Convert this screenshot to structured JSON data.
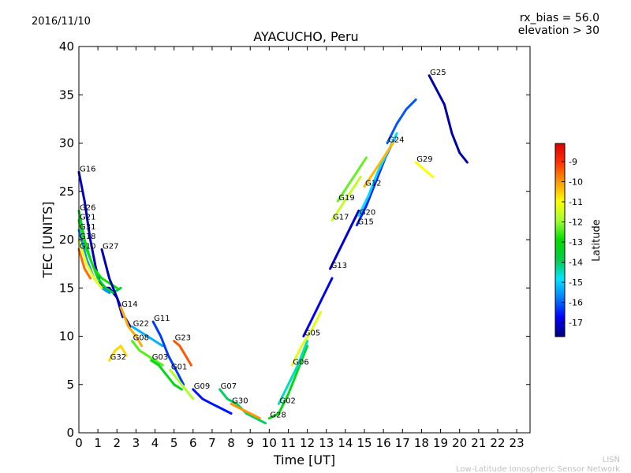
{
  "header": {
    "date": "2016/11/10",
    "title": "AYACUCHO, Peru",
    "bias_line": "rx_bias = 56.0",
    "elevation_line": "elevation > 30"
  },
  "footer": {
    "org_short": "LISN",
    "org_long": "Low-Latitude Ionospheric Sensor Network"
  },
  "colors": {
    "axes": "#000000",
    "footer": "#c0c0c0"
  },
  "chart_data": {
    "type": "scatter",
    "title": "AYACUCHO, Peru",
    "xlabel": "Time [UT]",
    "ylabel": "TEC [UNITS]",
    "xlim": [
      0,
      23.7
    ],
    "ylim": [
      0,
      40
    ],
    "xticks": [
      "0",
      "1",
      "2",
      "3",
      "4",
      "5",
      "6",
      "7",
      "8",
      "9",
      "10",
      "11",
      "12",
      "13",
      "14",
      "15",
      "16",
      "17",
      "18",
      "19",
      "20",
      "21",
      "22",
      "23"
    ],
    "yticks": [
      "0",
      "5",
      "10",
      "15",
      "20",
      "25",
      "30",
      "35",
      "40"
    ],
    "grid": false,
    "colorbar": {
      "label": "Latitude",
      "range": [
        -17.7,
        -8.1
      ],
      "ticks": [
        "-9",
        "-10",
        "-11",
        "-12",
        "-13",
        "-14",
        "-15",
        "-16",
        "-17"
      ],
      "colormap": [
        "#00007f",
        "#0000ff",
        "#007fff",
        "#00e5ff",
        "#00cc44",
        "#00dd00",
        "#a0ff30",
        "#ffff00",
        "#ff9900",
        "#ff3300",
        "#dd0000"
      ]
    },
    "series": [
      {
        "name": "G16",
        "lat": -17.2,
        "points": [
          [
            0,
            27
          ],
          [
            0.3,
            24
          ],
          [
            0.6,
            20
          ],
          [
            0.9,
            17
          ],
          [
            1.2,
            15
          ],
          [
            1.6,
            15
          ],
          [
            2.0,
            14
          ],
          [
            2.3,
            12
          ]
        ]
      },
      {
        "name": "G26",
        "lat": -13.5,
        "points": [
          [
            0,
            23
          ],
          [
            0.3,
            20
          ],
          [
            0.6,
            18
          ],
          [
            1.0,
            16
          ],
          [
            1.4,
            15
          ],
          [
            1.8,
            14.5
          ],
          [
            2.2,
            15
          ]
        ]
      },
      {
        "name": "G21",
        "lat": -12.8,
        "points": [
          [
            0,
            22
          ],
          [
            0.4,
            19
          ],
          [
            0.8,
            17
          ],
          [
            1.2,
            16
          ],
          [
            1.6,
            15.5
          ],
          [
            2.0,
            15
          ]
        ]
      },
      {
        "name": "G31",
        "lat": -15.6,
        "points": [
          [
            0,
            21
          ],
          [
            0.4,
            18
          ],
          [
            0.8,
            16
          ],
          [
            1.2,
            15
          ],
          [
            1.6,
            14.5
          ]
        ]
      },
      {
        "name": "G18",
        "lat": -11.2,
        "points": [
          [
            0,
            20
          ],
          [
            0.4,
            17.5
          ],
          [
            0.8,
            16
          ],
          [
            1.2,
            15
          ]
        ]
      },
      {
        "name": "G10",
        "lat": -9.6,
        "points": [
          [
            0,
            19
          ],
          [
            0.3,
            17
          ],
          [
            0.6,
            16
          ]
        ]
      },
      {
        "name": "G27",
        "lat": -17.3,
        "points": [
          [
            1.2,
            19
          ],
          [
            1.6,
            16
          ],
          [
            2.0,
            14
          ],
          [
            2.4,
            12
          ],
          [
            2.7,
            11
          ]
        ]
      },
      {
        "name": "G14",
        "lat": -10.2,
        "points": [
          [
            2.2,
            13
          ],
          [
            2.6,
            11
          ],
          [
            3.0,
            10
          ],
          [
            3.3,
            9
          ]
        ]
      },
      {
        "name": "G32",
        "lat": -10.6,
        "points": [
          [
            1.6,
            7.5
          ],
          [
            1.9,
            8.5
          ],
          [
            2.2,
            9
          ],
          [
            2.5,
            8
          ]
        ]
      },
      {
        "name": "G22",
        "lat": -15.3,
        "points": [
          [
            2.8,
            11
          ],
          [
            3.2,
            10.5
          ],
          [
            3.6,
            10
          ],
          [
            4.0,
            9.5
          ],
          [
            4.4,
            9
          ]
        ]
      },
      {
        "name": "G08",
        "lat": -12.4,
        "points": [
          [
            2.8,
            9.5
          ],
          [
            3.2,
            8.5
          ],
          [
            3.6,
            8
          ],
          [
            4.0,
            7.5
          ],
          [
            4.4,
            7
          ]
        ]
      },
      {
        "name": "G11",
        "lat": -16.3,
        "points": [
          [
            3.9,
            11.5
          ],
          [
            4.3,
            10
          ],
          [
            4.7,
            8
          ],
          [
            5.1,
            6.5
          ],
          [
            5.5,
            5
          ]
        ]
      },
      {
        "name": "G03",
        "lat": -13.2,
        "points": [
          [
            3.8,
            7.5
          ],
          [
            4.2,
            7
          ],
          [
            4.6,
            6
          ],
          [
            5.0,
            5
          ],
          [
            5.4,
            4.5
          ]
        ]
      },
      {
        "name": "G23",
        "lat": -9.4,
        "points": [
          [
            5.0,
            9.5
          ],
          [
            5.3,
            9
          ],
          [
            5.6,
            8
          ],
          [
            5.9,
            7
          ]
        ]
      },
      {
        "name": "G01",
        "lat": -11.8,
        "points": [
          [
            4.8,
            6.5
          ],
          [
            5.2,
            5.5
          ],
          [
            5.6,
            4.5
          ],
          [
            6.0,
            3.5
          ]
        ]
      },
      {
        "name": "G09",
        "lat": -16.6,
        "points": [
          [
            6.0,
            4.5
          ],
          [
            6.5,
            3.5
          ],
          [
            7.0,
            3
          ],
          [
            7.5,
            2.5
          ],
          [
            8.0,
            2
          ]
        ]
      },
      {
        "name": "G07",
        "lat": -14.0,
        "points": [
          [
            7.4,
            4.5
          ],
          [
            7.8,
            3.5
          ],
          [
            8.3,
            3
          ],
          [
            8.8,
            2
          ],
          [
            9.3,
            1.5
          ],
          [
            9.8,
            1
          ]
        ]
      },
      {
        "name": "G30",
        "lat": -10.0,
        "points": [
          [
            8.0,
            3
          ],
          [
            8.5,
            2.5
          ],
          [
            9.0,
            2
          ],
          [
            9.5,
            1.5
          ]
        ]
      },
      {
        "name": "G28",
        "lat": -13.1,
        "points": [
          [
            10.0,
            1.5
          ],
          [
            10.5,
            2
          ],
          [
            11.0,
            4
          ],
          [
            11.5,
            6.5
          ],
          [
            12.0,
            9
          ]
        ]
      },
      {
        "name": "G02",
        "lat": -14.5,
        "points": [
          [
            10.5,
            3
          ],
          [
            11.0,
            5
          ],
          [
            11.5,
            7
          ],
          [
            12.0,
            9.5
          ]
        ]
      },
      {
        "name": "G06",
        "lat": -11.3,
        "points": [
          [
            11.2,
            7
          ],
          [
            11.7,
            9
          ],
          [
            12.2,
            10.5
          ],
          [
            12.7,
            12.5
          ]
        ]
      },
      {
        "name": "G05",
        "lat": -16.8,
        "points": [
          [
            11.8,
            10
          ],
          [
            12.3,
            12
          ],
          [
            12.8,
            14
          ],
          [
            13.3,
            16
          ]
        ]
      },
      {
        "name": "G13",
        "lat": -17.1,
        "points": [
          [
            13.2,
            17
          ],
          [
            13.7,
            19
          ],
          [
            14.2,
            21
          ],
          [
            14.7,
            23
          ]
        ]
      },
      {
        "name": "G17",
        "lat": -11.6,
        "points": [
          [
            13.3,
            22
          ],
          [
            13.8,
            23.5
          ],
          [
            14.3,
            25
          ],
          [
            14.8,
            26.5
          ]
        ]
      },
      {
        "name": "G19",
        "lat": -12.3,
        "points": [
          [
            13.6,
            24
          ],
          [
            14.1,
            25.5
          ],
          [
            14.6,
            27
          ],
          [
            15.1,
            28.5
          ]
        ]
      },
      {
        "name": "G15",
        "lat": -16.5,
        "points": [
          [
            14.6,
            21.5
          ],
          [
            15.1,
            23.5
          ],
          [
            15.6,
            26
          ],
          [
            16.1,
            28.5
          ],
          [
            16.6,
            30.5
          ]
        ]
      },
      {
        "name": "G20",
        "lat": -14.9,
        "points": [
          [
            14.7,
            22.5
          ],
          [
            15.2,
            24.5
          ],
          [
            15.7,
            27
          ],
          [
            16.2,
            29
          ],
          [
            16.7,
            31
          ]
        ]
      },
      {
        "name": "G12",
        "lat": -10.3,
        "points": [
          [
            15.0,
            25.5
          ],
          [
            15.5,
            27
          ],
          [
            16.0,
            28.5
          ],
          [
            16.5,
            30
          ]
        ]
      },
      {
        "name": "G24",
        "lat": -16.1,
        "points": [
          [
            16.2,
            30
          ],
          [
            16.7,
            32
          ],
          [
            17.2,
            33.5
          ],
          [
            17.7,
            34.5
          ]
        ]
      },
      {
        "name": "G29",
        "lat": -11.0,
        "points": [
          [
            17.7,
            28
          ],
          [
            18.0,
            27.5
          ],
          [
            18.3,
            27
          ],
          [
            18.6,
            26.5
          ]
        ]
      },
      {
        "name": "G25",
        "lat": -17.4,
        "points": [
          [
            18.4,
            37
          ],
          [
            18.8,
            35.5
          ],
          [
            19.2,
            34
          ],
          [
            19.6,
            31
          ],
          [
            20.0,
            29
          ],
          [
            20.4,
            28
          ]
        ]
      }
    ]
  }
}
